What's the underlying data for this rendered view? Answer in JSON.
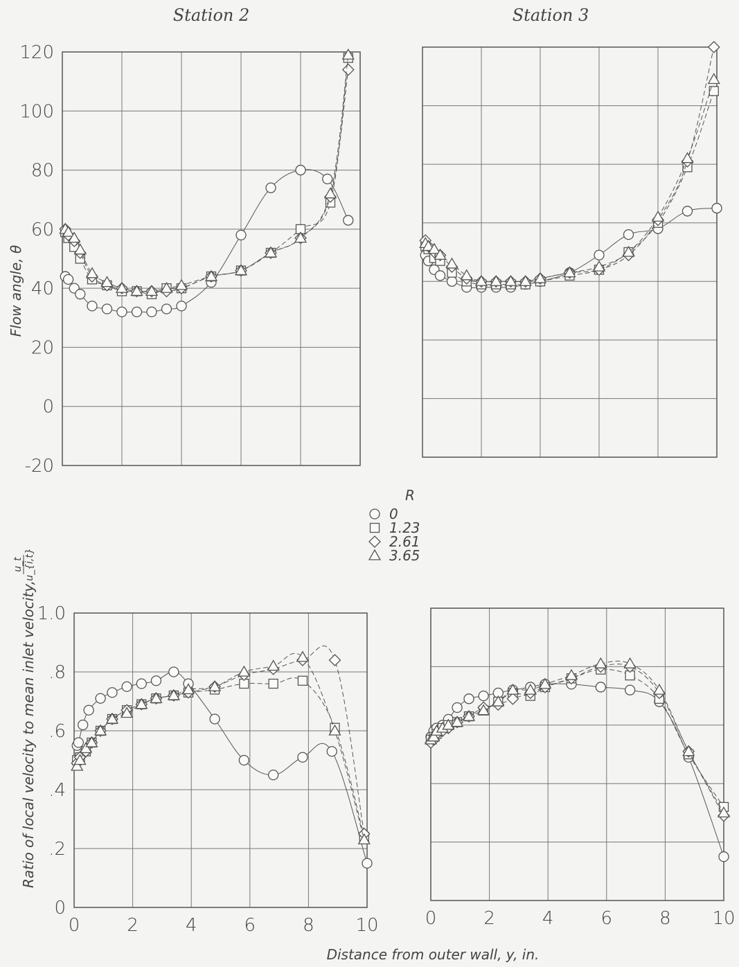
{
  "figure": {
    "legend_title": "R",
    "xlabel": "Distance from outer wall, y, in.",
    "ylabel_top": "Flow angle, θ",
    "ylabel_bottom": "Ratio of local velocity to mean inlet velocity,",
    "ylabel_bottom_fraction": {
      "num": "u_t",
      "den": "u_{i,t}"
    },
    "x_ticks": [
      "0",
      "2",
      "4",
      "6",
      "8",
      "10"
    ],
    "y_ticks_angle": [
      "120",
      "100",
      "80",
      "60",
      "40",
      "20",
      "0",
      "-20"
    ],
    "y_ticks_velocity": [
      "1.0",
      ".8",
      ".6",
      ".4",
      ".2",
      "0"
    ]
  },
  "legend": [
    {
      "marker": "circle",
      "label": "0"
    },
    {
      "marker": "square",
      "label": "1.23"
    },
    {
      "marker": "diamond",
      "label": "2.61"
    },
    {
      "marker": "triangle",
      "label": "3.65"
    }
  ],
  "chart_data": [
    {
      "type": "line",
      "title": "Station 2",
      "xlabel": "",
      "ylabel": "Flow angle, θ",
      "xlim": [
        0,
        10
      ],
      "ylim": [
        -20,
        120
      ],
      "grid": true,
      "series": [
        {
          "name": "0",
          "marker": "circle",
          "dash": "solid",
          "x": [
            0.1,
            0.2,
            0.4,
            0.6,
            1.0,
            1.5,
            2.0,
            2.5,
            3.0,
            3.5,
            4.0,
            5.0,
            6.0,
            7.0,
            8.0,
            8.9,
            9.6
          ],
          "y": [
            44,
            43,
            40,
            38,
            34,
            33,
            32,
            32,
            32,
            33,
            34,
            42,
            58,
            74,
            80,
            77,
            63
          ]
        },
        {
          "name": "1.23",
          "marker": "square",
          "dash": "dashed",
          "x": [
            0.1,
            0.2,
            0.4,
            0.6,
            1.0,
            1.5,
            2.0,
            2.5,
            3.0,
            3.5,
            4.0,
            5.0,
            6.0,
            7.0,
            8.0,
            9.0,
            9.6
          ],
          "y": [
            59,
            57,
            54,
            50,
            43,
            41,
            39,
            39,
            38,
            40,
            40,
            44,
            46,
            52,
            60,
            69,
            118
          ]
        },
        {
          "name": "2.61",
          "marker": "diamond",
          "dash": "dashed",
          "x": [
            0.1,
            0.2,
            0.4,
            0.6,
            1.0,
            1.5,
            2.0,
            2.5,
            3.0,
            3.5,
            4.0,
            5.0,
            6.0,
            7.0,
            8.0,
            9.0,
            9.6
          ],
          "y": [
            60,
            58,
            56,
            52,
            44,
            41,
            40,
            39,
            39,
            39,
            40,
            44,
            46,
            52,
            57,
            71,
            114
          ]
        },
        {
          "name": "3.65",
          "marker": "triangle",
          "dash": "dashed",
          "x": [
            0.1,
            0.2,
            0.4,
            0.6,
            1.0,
            1.5,
            2.0,
            2.5,
            3.0,
            3.5,
            4.0,
            5.0,
            6.0,
            7.0,
            8.0,
            9.0,
            9.6
          ],
          "y": [
            60,
            59,
            57,
            53,
            45,
            42,
            40,
            39,
            39,
            40,
            41,
            44,
            46,
            52,
            57,
            72,
            119
          ]
        }
      ]
    },
    {
      "type": "line",
      "title": "Station 3",
      "xlabel": "",
      "ylabel": "",
      "xlim": [
        0,
        10
      ],
      "ylim": [
        -20,
        120
      ],
      "grid": true,
      "series": [
        {
          "name": "0",
          "marker": "circle",
          "dash": "solid",
          "x": [
            0.1,
            0.2,
            0.4,
            0.6,
            1.0,
            1.5,
            2.0,
            2.5,
            3.0,
            3.5,
            4.0,
            5.0,
            6.0,
            7.0,
            8.0,
            9.0,
            10.0
          ],
          "y": [
            49,
            47,
            44,
            42,
            40,
            38,
            38,
            38,
            38,
            39,
            40,
            43,
            49,
            56,
            58,
            64,
            65
          ]
        },
        {
          "name": "1.23",
          "marker": "square",
          "dash": "dashed",
          "x": [
            0.1,
            0.2,
            0.4,
            0.6,
            1.0,
            1.5,
            2.0,
            2.5,
            3.0,
            3.5,
            4.0,
            5.0,
            6.0,
            7.0,
            8.0,
            9.0,
            9.9
          ],
          "y": [
            52,
            51,
            48,
            47,
            43,
            40,
            39,
            39,
            39,
            39,
            40,
            42,
            44,
            50,
            60,
            79,
            105
          ]
        },
        {
          "name": "2.61",
          "marker": "diamond",
          "dash": "dashed",
          "x": [
            0.1,
            0.2,
            0.4,
            0.6,
            1.0,
            1.5,
            2.0,
            2.5,
            3.0,
            3.5,
            4.0,
            5.0,
            6.0,
            7.0,
            8.0,
            9.0,
            9.9
          ],
          "y": [
            54,
            52,
            50,
            49,
            45,
            41,
            40,
            40,
            40,
            40,
            41,
            43,
            44,
            49,
            61,
            81,
            120
          ]
        },
        {
          "name": "3.65",
          "marker": "triangle",
          "dash": "dashed",
          "x": [
            0.1,
            0.2,
            0.4,
            0.6,
            1.0,
            1.5,
            2.0,
            2.5,
            3.0,
            3.5,
            4.0,
            5.0,
            6.0,
            7.0,
            8.0,
            9.0,
            9.9
          ],
          "y": [
            53,
            52,
            51,
            49,
            46,
            42,
            40,
            40,
            40,
            40,
            41,
            43,
            45,
            50,
            62,
            82,
            109
          ]
        }
      ]
    },
    {
      "type": "line",
      "title": "",
      "xlabel": "",
      "ylabel": "Ratio of local velocity to mean inlet velocity",
      "xlim": [
        0,
        10
      ],
      "ylim": [
        0,
        1.0
      ],
      "grid": true,
      "series": [
        {
          "name": "0",
          "marker": "circle",
          "dash": "solid",
          "x": [
            0.1,
            0.15,
            0.3,
            0.5,
            0.9,
            1.3,
            1.8,
            2.3,
            2.8,
            3.4,
            3.9,
            4.8,
            5.8,
            6.8,
            7.8,
            8.8,
            10.0
          ],
          "y": [
            0.55,
            0.56,
            0.62,
            0.67,
            0.71,
            0.73,
            0.75,
            0.76,
            0.77,
            0.8,
            0.76,
            0.64,
            0.5,
            0.45,
            0.51,
            0.53,
            0.15
          ]
        },
        {
          "name": "1.23",
          "marker": "square",
          "dash": "dashed",
          "x": [
            0.1,
            0.2,
            0.4,
            0.6,
            0.9,
            1.3,
            1.8,
            2.3,
            2.8,
            3.4,
            3.9,
            4.8,
            5.8,
            6.8,
            7.8,
            8.9,
            9.9
          ],
          "y": [
            0.5,
            0.51,
            0.53,
            0.56,
            0.6,
            0.64,
            0.67,
            0.69,
            0.71,
            0.72,
            0.73,
            0.74,
            0.76,
            0.76,
            0.77,
            0.61,
            0.24
          ]
        },
        {
          "name": "2.61",
          "marker": "diamond",
          "dash": "dashed",
          "x": [
            0.1,
            0.2,
            0.4,
            0.6,
            0.9,
            1.3,
            1.8,
            2.3,
            2.8,
            3.4,
            3.9,
            4.8,
            5.8,
            6.8,
            7.8,
            8.9,
            9.9
          ],
          "y": [
            0.49,
            0.51,
            0.53,
            0.56,
            0.6,
            0.64,
            0.67,
            0.69,
            0.71,
            0.72,
            0.73,
            0.75,
            0.79,
            0.81,
            0.84,
            0.84,
            0.25
          ]
        },
        {
          "name": "3.65",
          "marker": "triangle",
          "dash": "dashed",
          "x": [
            0.1,
            0.2,
            0.4,
            0.6,
            0.9,
            1.3,
            1.8,
            2.3,
            2.8,
            3.4,
            3.9,
            4.8,
            5.8,
            6.8,
            7.8,
            8.9,
            9.9
          ],
          "y": [
            0.48,
            0.5,
            0.54,
            0.56,
            0.6,
            0.64,
            0.66,
            0.69,
            0.71,
            0.72,
            0.74,
            0.75,
            0.8,
            0.82,
            0.85,
            0.6,
            0.23
          ]
        }
      ]
    },
    {
      "type": "line",
      "title": "",
      "xlabel": "",
      "ylabel": "",
      "xlim": [
        0,
        10
      ],
      "ylim": [
        0,
        1.0
      ],
      "grid": true,
      "series": [
        {
          "name": "0",
          "marker": "circle",
          "dash": "solid",
          "x": [
            0.0,
            0.1,
            0.2,
            0.4,
            0.6,
            0.9,
            1.3,
            1.8,
            2.3,
            2.8,
            3.4,
            3.9,
            4.8,
            5.8,
            6.8,
            7.8,
            8.8,
            10.0
          ],
          "y": [
            0.56,
            0.58,
            0.59,
            0.6,
            0.62,
            0.66,
            0.69,
            0.7,
            0.71,
            0.72,
            0.73,
            0.74,
            0.74,
            0.73,
            0.72,
            0.68,
            0.49,
            0.15
          ]
        },
        {
          "name": "1.23",
          "marker": "square",
          "dash": "dashed",
          "x": [
            0.0,
            0.1,
            0.2,
            0.4,
            0.6,
            0.9,
            1.3,
            1.8,
            2.3,
            2.8,
            3.4,
            3.9,
            4.8,
            5.8,
            6.8,
            7.8,
            8.8,
            10.0
          ],
          "y": [
            0.55,
            0.56,
            0.57,
            0.59,
            0.6,
            0.61,
            0.63,
            0.65,
            0.68,
            0.71,
            0.7,
            0.73,
            0.76,
            0.79,
            0.77,
            0.69,
            0.5,
            0.32
          ]
        },
        {
          "name": "2.61",
          "marker": "diamond",
          "dash": "dashed",
          "x": [
            0.0,
            0.1,
            0.2,
            0.4,
            0.6,
            0.9,
            1.3,
            1.8,
            2.3,
            2.8,
            3.4,
            3.9,
            4.8,
            5.8,
            6.8,
            7.8,
            8.8,
            10.0
          ],
          "y": [
            0.54,
            0.55,
            0.57,
            0.58,
            0.59,
            0.61,
            0.63,
            0.66,
            0.67,
            0.69,
            0.71,
            0.73,
            0.76,
            0.8,
            0.8,
            0.71,
            0.51,
            0.29
          ]
        },
        {
          "name": "3.65",
          "marker": "triangle",
          "dash": "dashed",
          "x": [
            0.0,
            0.1,
            0.2,
            0.4,
            0.6,
            0.9,
            1.3,
            1.8,
            2.3,
            2.8,
            3.4,
            3.9,
            4.8,
            5.8,
            6.8,
            7.8,
            8.8,
            10.0
          ],
          "y": [
            0.55,
            0.56,
            0.58,
            0.59,
            0.6,
            0.61,
            0.63,
            0.65,
            0.68,
            0.72,
            0.72,
            0.74,
            0.77,
            0.81,
            0.81,
            0.72,
            0.51,
            0.3
          ]
        }
      ]
    }
  ]
}
